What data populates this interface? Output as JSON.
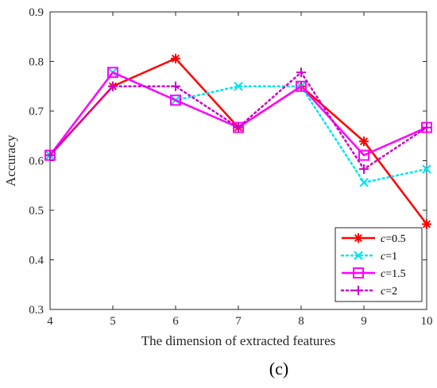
{
  "caption": "(c)",
  "chart_data": {
    "type": "line",
    "xlabel": "The dimension of extracted features",
    "ylabel": "Accuracy",
    "x": [
      4,
      5,
      6,
      7,
      8,
      9,
      10
    ],
    "xlim": [
      4,
      10
    ],
    "ylim": [
      0.3,
      0.9
    ],
    "xticks": [
      "4",
      "5",
      "6",
      "7",
      "8",
      "9",
      "10"
    ],
    "yticks": [
      "0.3",
      "0.4",
      "0.5",
      "0.6",
      "0.7",
      "0.8",
      "0.9"
    ],
    "grid": false,
    "legend_position": "bottom-right",
    "series": [
      {
        "name": "c=0.5",
        "name_italic": "c",
        "name_rest": "=0.5",
        "color": "#ff0000",
        "style": "solid",
        "marker": "asterisk",
        "values": [
          0.611,
          0.75,
          0.806,
          0.667,
          0.75,
          0.639,
          0.472
        ]
      },
      {
        "name": "c=1",
        "name_italic": "c",
        "name_rest": "=1",
        "color": "#00e5ee",
        "style": "dotted",
        "marker": "x",
        "values": [
          0.611,
          0.778,
          0.722,
          0.75,
          0.75,
          0.556,
          0.583
        ]
      },
      {
        "name": "c=1.5",
        "name_italic": "c",
        "name_rest": "=1.5",
        "color": "#ff00ff",
        "style": "solid",
        "marker": "square",
        "values": [
          0.611,
          0.778,
          0.722,
          0.667,
          0.75,
          0.611,
          0.667
        ]
      },
      {
        "name": "c=2",
        "name_italic": "c",
        "name_rest": "=2",
        "color": "#cc00cc",
        "style": "dotted",
        "marker": "plus",
        "values": [
          0.611,
          0.75,
          0.75,
          0.667,
          0.778,
          0.583,
          0.667
        ]
      }
    ]
  }
}
